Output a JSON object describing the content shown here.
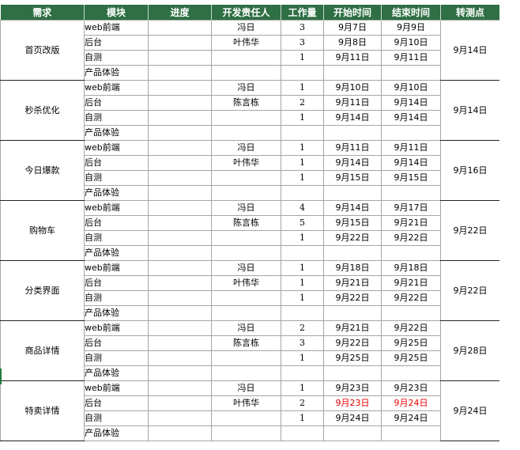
{
  "headers": {
    "requirement": "需求",
    "module": "模块",
    "progress": "进度",
    "developer": "开发责任人",
    "workload": "工作量",
    "start": "开始时间",
    "end": "结束时间",
    "handover": "转测点"
  },
  "groups": [
    {
      "requirement": "首页改版",
      "handover": "9月14日",
      "rows": [
        {
          "module": "web前端",
          "progress": "",
          "developer": "冯日",
          "workload": "3",
          "start": "9月7日",
          "end": "9月9日"
        },
        {
          "module": "后台",
          "progress": "",
          "developer": "叶伟华",
          "workload": "3",
          "start": "9月8日",
          "end": "9月10日"
        },
        {
          "module": "自测",
          "progress": "",
          "developer": "",
          "workload": "1",
          "start": "9月11日",
          "end": "9月11日"
        },
        {
          "module": "产品体验",
          "progress": "",
          "developer": "",
          "workload": "",
          "start": "",
          "end": ""
        }
      ]
    },
    {
      "requirement": "秒杀优化",
      "handover": "9月14日",
      "rows": [
        {
          "module": "web前端",
          "progress": "",
          "developer": "冯日",
          "workload": "1",
          "start": "9月10日",
          "end": "9月10日"
        },
        {
          "module": "后台",
          "progress": "",
          "developer": "陈言栋",
          "workload": "2",
          "start": "9月11日",
          "end": "9月14日"
        },
        {
          "module": "自测",
          "progress": "",
          "developer": "",
          "workload": "1",
          "start": "9月14日",
          "end": "9月14日"
        },
        {
          "module": "产品体验",
          "progress": "",
          "developer": "",
          "workload": "",
          "start": "",
          "end": ""
        }
      ]
    },
    {
      "requirement": "今日爆款",
      "handover": "9月16日",
      "rows": [
        {
          "module": "web前端",
          "progress": "",
          "developer": "冯日",
          "workload": "1",
          "start": "9月11日",
          "end": "9月11日"
        },
        {
          "module": "后台",
          "progress": "",
          "developer": "叶伟华",
          "workload": "1",
          "start": "9月14日",
          "end": "9月14日"
        },
        {
          "module": "自测",
          "progress": "",
          "developer": "",
          "workload": "1",
          "start": "9月15日",
          "end": "9月15日"
        },
        {
          "module": "产品体验",
          "progress": "",
          "developer": "",
          "workload": "",
          "start": "",
          "end": ""
        }
      ]
    },
    {
      "requirement": "购物车",
      "handover": "9月22日",
      "rows": [
        {
          "module": "web前端",
          "progress": "",
          "developer": "冯日",
          "workload": "4",
          "start": "9月14日",
          "end": "9月17日"
        },
        {
          "module": "后台",
          "progress": "",
          "developer": "陈言栋",
          "workload": "5",
          "start": "9月15日",
          "end": "9月21日"
        },
        {
          "module": "自测",
          "progress": "",
          "developer": "",
          "workload": "1",
          "start": "9月22日",
          "end": "9月22日"
        },
        {
          "module": "产品体验",
          "progress": "",
          "developer": "",
          "workload": "",
          "start": "",
          "end": ""
        }
      ]
    },
    {
      "requirement": "分类界面",
      "handover": "9月22日",
      "rows": [
        {
          "module": "web前端",
          "progress": "",
          "developer": "冯日",
          "workload": "1",
          "start": "9月18日",
          "end": "9月18日"
        },
        {
          "module": "后台",
          "progress": "",
          "developer": "叶伟华",
          "workload": "1",
          "start": "9月21日",
          "end": "9月21日"
        },
        {
          "module": "自测",
          "progress": "",
          "developer": "",
          "workload": "1",
          "start": "9月22日",
          "end": "9月22日"
        },
        {
          "module": "产品体验",
          "progress": "",
          "developer": "",
          "workload": "",
          "start": "",
          "end": ""
        }
      ]
    },
    {
      "requirement": "商品详情",
      "handover": "9月28日",
      "rows": [
        {
          "module": "web前端",
          "progress": "",
          "developer": "冯日",
          "workload": "2",
          "start": "9月21日",
          "end": "9月22日"
        },
        {
          "module": "后台",
          "progress": "",
          "developer": "陈言栋",
          "workload": "3",
          "start": "9月22日",
          "end": "9月25日"
        },
        {
          "module": "自测",
          "progress": "",
          "developer": "",
          "workload": "1",
          "start": "9月25日",
          "end": "9月25日"
        },
        {
          "module": "产品体验",
          "progress": "",
          "developer": "",
          "workload": "",
          "start": "",
          "end": ""
        }
      ]
    },
    {
      "requirement": "特卖详情",
      "handover": "9月24日",
      "rows": [
        {
          "module": "web前端",
          "progress": "",
          "developer": "冯日",
          "workload": "1",
          "start": "9月23日",
          "end": "9月23日"
        },
        {
          "module": "后台",
          "progress": "",
          "developer": "叶伟华",
          "workload": "2",
          "start": "9月23日",
          "end": "9月24日",
          "highlight": "#e60000"
        },
        {
          "module": "自测",
          "progress": "",
          "developer": "",
          "workload": "1",
          "start": "9月24日",
          "end": "9月24日"
        },
        {
          "module": "产品体验",
          "progress": "",
          "developer": "",
          "workload": "",
          "start": "",
          "end": ""
        }
      ]
    }
  ],
  "colors": {
    "header_bg": "#2e6f43",
    "header_text": "#ffffff",
    "grid_line": "#a6a6a6",
    "group_border": "#222222",
    "highlight_text": "#e60000"
  }
}
